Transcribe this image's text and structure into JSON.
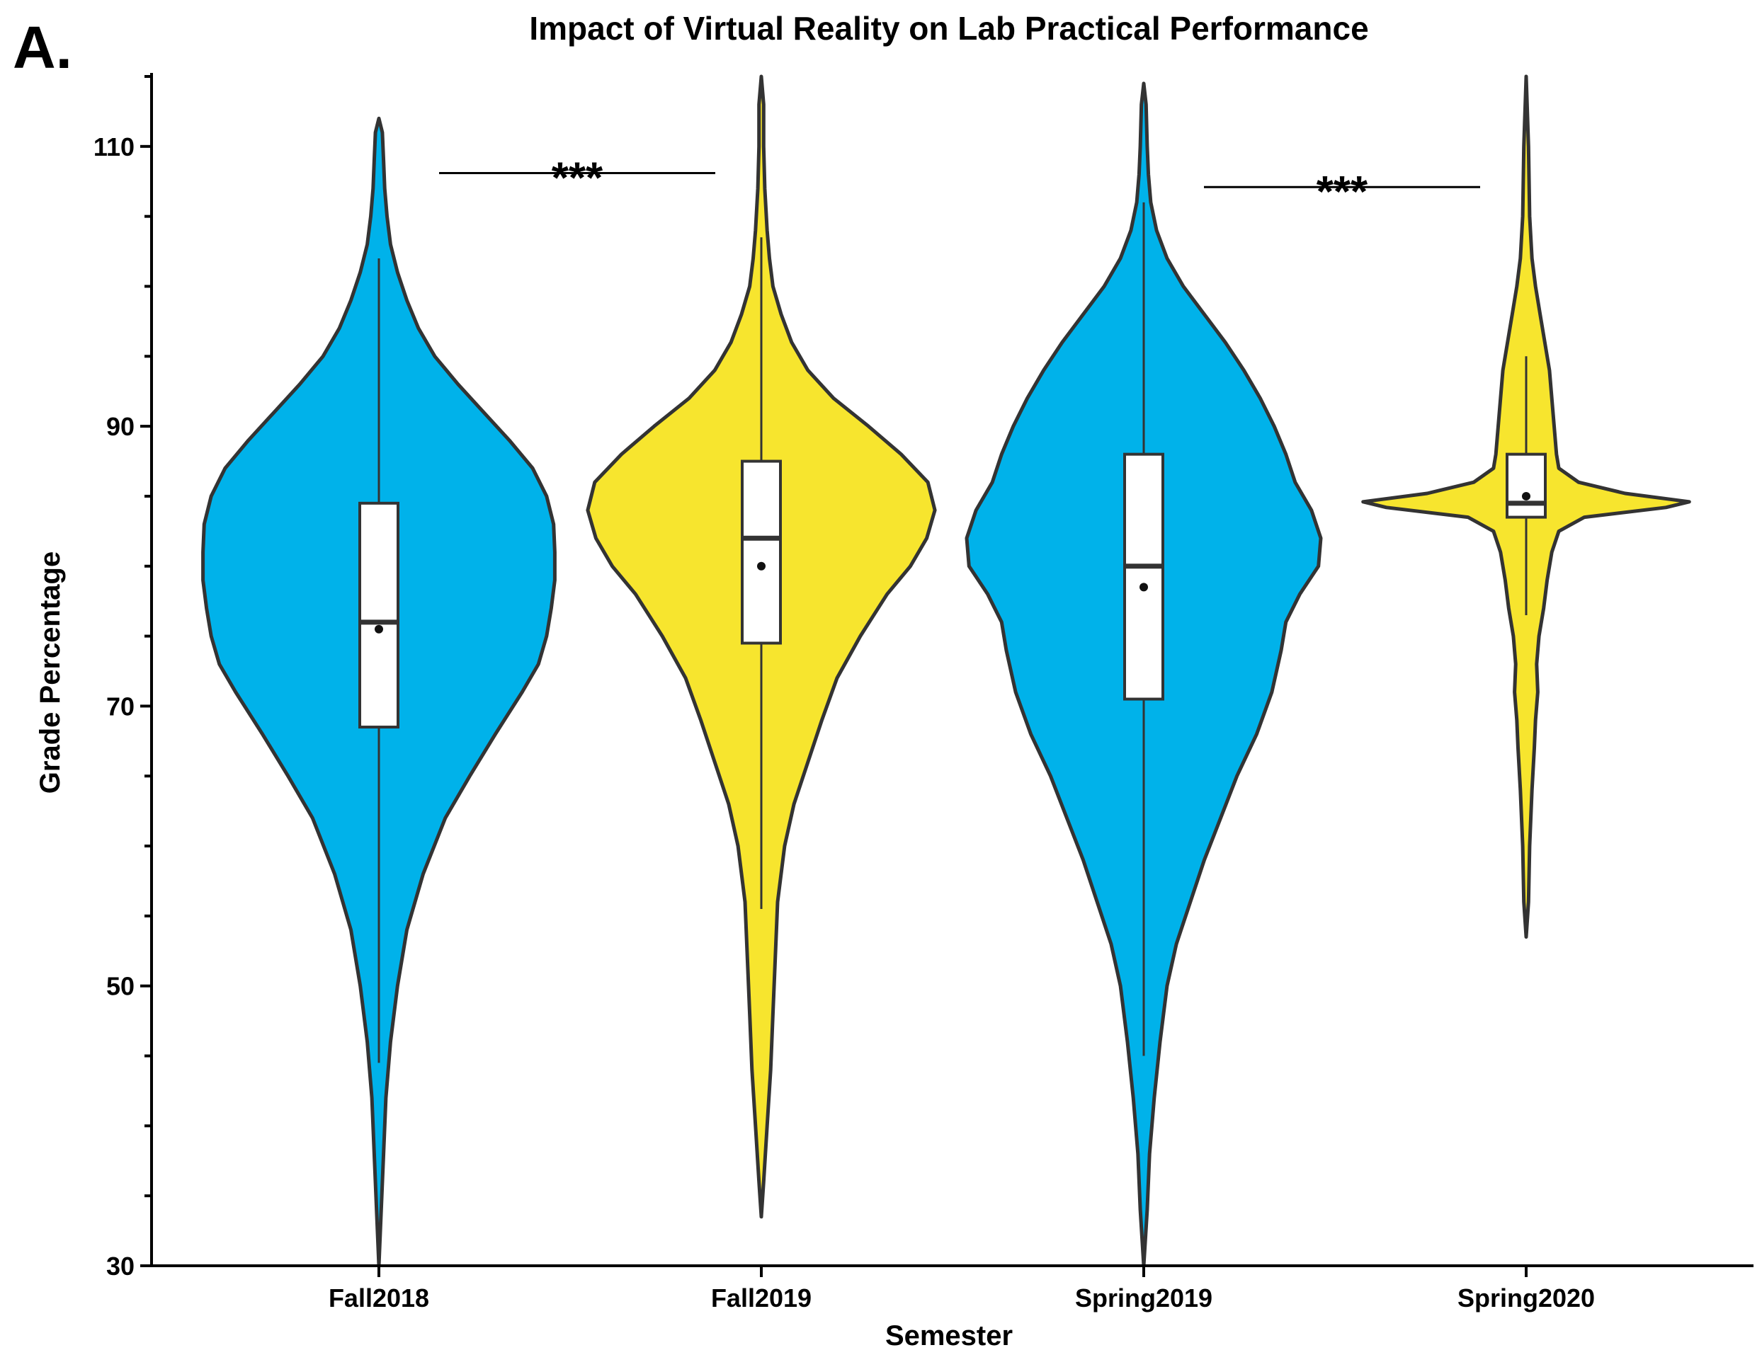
{
  "panel_label": "A.",
  "chart_data": {
    "type": "violin",
    "title": "Impact of Virtual Reality on Lab Practical Performance",
    "xlabel": "Semester",
    "ylabel": "Grade Percentage",
    "ylim": [
      30,
      115
    ],
    "yticks": [
      30,
      50,
      70,
      90,
      110
    ],
    "categories": [
      "Fall2018",
      "Fall2019",
      "Spring2019",
      "Spring2020"
    ],
    "colors": {
      "vr": "#00b2ea",
      "non_vr": "#f7e52e",
      "outline": "#333333"
    },
    "groups": [
      {
        "category": "Fall2018",
        "color": "#00b2ea",
        "violin_range": [
          30,
          112
        ],
        "whiskers": [
          44.5,
          102
        ],
        "box": {
          "q1": 68.5,
          "median": 76,
          "q3": 84.5
        },
        "mean": 75.5,
        "density": [
          [
            30,
            0
          ],
          [
            34,
            2
          ],
          [
            38,
            4
          ],
          [
            42,
            6
          ],
          [
            46,
            10
          ],
          [
            50,
            16
          ],
          [
            54,
            24
          ],
          [
            58,
            38
          ],
          [
            62,
            57
          ],
          [
            65,
            78
          ],
          [
            68,
            100
          ],
          [
            71,
            123
          ],
          [
            73,
            137
          ],
          [
            75,
            144
          ],
          [
            77,
            148
          ],
          [
            79,
            151
          ],
          [
            81,
            151
          ],
          [
            83,
            150
          ],
          [
            85,
            144
          ],
          [
            87,
            132
          ],
          [
            89,
            112
          ],
          [
            91,
            90
          ],
          [
            93,
            68
          ],
          [
            95,
            48
          ],
          [
            97,
            34
          ],
          [
            99,
            24
          ],
          [
            101,
            16
          ],
          [
            103,
            10
          ],
          [
            105,
            7
          ],
          [
            107,
            5
          ],
          [
            109,
            4
          ],
          [
            111,
            3
          ],
          [
            112,
            0
          ]
        ]
      },
      {
        "category": "Fall2019",
        "color": "#f7e52e",
        "violin_range": [
          33.5,
          115
        ],
        "whiskers": [
          55.5,
          103.5
        ],
        "box": {
          "q1": 74.5,
          "median": 82,
          "q3": 87.5
        },
        "mean": 80,
        "density": [
          [
            33.5,
            0
          ],
          [
            36,
            2
          ],
          [
            40,
            5
          ],
          [
            44,
            8
          ],
          [
            48,
            10
          ],
          [
            52,
            12
          ],
          [
            56,
            14
          ],
          [
            60,
            20
          ],
          [
            63,
            28
          ],
          [
            66,
            40
          ],
          [
            69,
            52
          ],
          [
            72,
            65
          ],
          [
            75,
            85
          ],
          [
            78,
            108
          ],
          [
            80,
            128
          ],
          [
            82,
            142
          ],
          [
            84,
            149
          ],
          [
            86,
            143
          ],
          [
            88,
            120
          ],
          [
            90,
            92
          ],
          [
            92,
            62
          ],
          [
            94,
            40
          ],
          [
            96,
            26
          ],
          [
            98,
            17
          ],
          [
            100,
            10
          ],
          [
            102,
            7
          ],
          [
            104,
            5
          ],
          [
            107,
            3
          ],
          [
            110,
            2
          ],
          [
            113,
            2
          ],
          [
            115,
            0
          ]
        ]
      },
      {
        "category": "Spring2019",
        "color": "#00b2ea",
        "violin_range": [
          30,
          114.5
        ],
        "whiskers": [
          45,
          106
        ],
        "box": {
          "q1": 70.5,
          "median": 80,
          "q3": 88
        },
        "mean": 78.5,
        "density": [
          [
            30,
            0
          ],
          [
            34,
            3
          ],
          [
            38,
            5
          ],
          [
            42,
            9
          ],
          [
            46,
            14
          ],
          [
            50,
            20
          ],
          [
            53,
            28
          ],
          [
            56,
            40
          ],
          [
            59,
            52
          ],
          [
            62,
            66
          ],
          [
            65,
            80
          ],
          [
            68,
            97
          ],
          [
            71,
            110
          ],
          [
            74,
            118
          ],
          [
            76,
            122
          ],
          [
            78,
            134
          ],
          [
            80,
            150
          ],
          [
            82,
            152
          ],
          [
            84,
            144
          ],
          [
            86,
            130
          ],
          [
            88,
            122
          ],
          [
            90,
            112
          ],
          [
            92,
            100
          ],
          [
            94,
            86
          ],
          [
            96,
            70
          ],
          [
            98,
            52
          ],
          [
            100,
            34
          ],
          [
            102,
            20
          ],
          [
            104,
            11
          ],
          [
            106,
            6
          ],
          [
            108,
            4
          ],
          [
            110,
            3
          ],
          [
            113,
            2
          ],
          [
            114.5,
            0
          ]
        ]
      },
      {
        "category": "Spring2020",
        "color": "#f7e52e",
        "violin_range": [
          53.5,
          115
        ],
        "whiskers": [
          76.5,
          95
        ],
        "box": {
          "q1": 83.5,
          "median": 84.5,
          "q3": 88
        },
        "mean": 85,
        "density": [
          [
            53.5,
            0
          ],
          [
            56,
            2
          ],
          [
            60,
            3
          ],
          [
            64,
            5
          ],
          [
            67,
            7
          ],
          [
            69,
            8
          ],
          [
            71,
            10
          ],
          [
            73,
            9
          ],
          [
            75,
            11
          ],
          [
            77,
            15
          ],
          [
            79,
            18
          ],
          [
            81,
            22
          ],
          [
            82.5,
            28
          ],
          [
            83.5,
            50
          ],
          [
            84.2,
            120
          ],
          [
            84.6,
            140
          ],
          [
            85.2,
            85
          ],
          [
            86,
            45
          ],
          [
            87,
            28
          ],
          [
            88,
            26
          ],
          [
            90,
            24
          ],
          [
            92,
            22
          ],
          [
            94,
            20
          ],
          [
            96,
            16
          ],
          [
            98,
            12
          ],
          [
            100,
            8
          ],
          [
            102,
            5
          ],
          [
            105,
            3
          ],
          [
            110,
            2
          ],
          [
            115,
            0
          ]
        ]
      }
    ],
    "annotations": [
      {
        "text": "***",
        "from": "Fall2018",
        "to": "Fall2019",
        "y": 108.5
      },
      {
        "text": "***",
        "from": "Spring2019",
        "to": "Spring2020",
        "y": 107.5
      }
    ]
  }
}
